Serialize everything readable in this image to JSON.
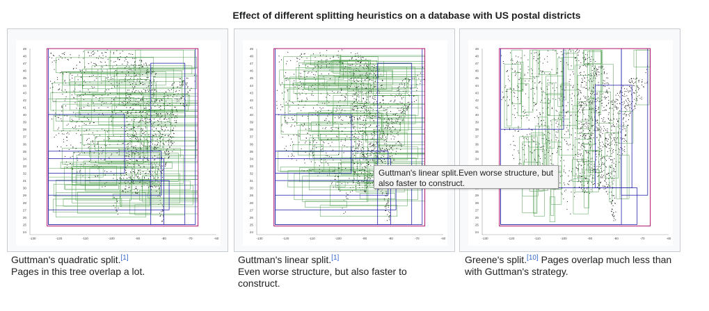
{
  "gallery": {
    "title": "Effect of different splitting heuristics on a database with US postal districts"
  },
  "axis": {
    "y_ticks": [
      "49",
      "48",
      "47",
      "46",
      "45",
      "44",
      "43",
      "42",
      "41",
      "40",
      "39",
      "38",
      "37",
      "36",
      "35",
      "34",
      "33",
      "32",
      "31",
      "30",
      "29",
      "28",
      "27",
      "26",
      "25",
      "24"
    ],
    "x_ticks": [
      "-130",
      "-120",
      "-110",
      "-100",
      "-90",
      "-80",
      "-70",
      "-60"
    ]
  },
  "colors": {
    "leaf_rect": "#2e8b2e",
    "inner_rect": "#2222aa",
    "root_rect": "#b0106f",
    "points": "#111111"
  },
  "panels": [
    {
      "caption_title": "Guttman's quadratic split.",
      "ref": "[1]",
      "caption_lines": [
        "Pages in this tree overlap a lot."
      ]
    },
    {
      "caption_title": "Guttman's linear split.",
      "ref": "[1]",
      "caption_lines": [
        "Even worse structure, but also faster to",
        "construct."
      ]
    },
    {
      "caption_title": "Greene's split.",
      "ref": "[10]",
      "caption_lines": [
        "Pages overlap much less than",
        "with Guttman's strategy."
      ]
    }
  ],
  "tooltip": {
    "line1": "Guttman's linear split.Even worse structure, but",
    "line2": "also faster to construct."
  }
}
